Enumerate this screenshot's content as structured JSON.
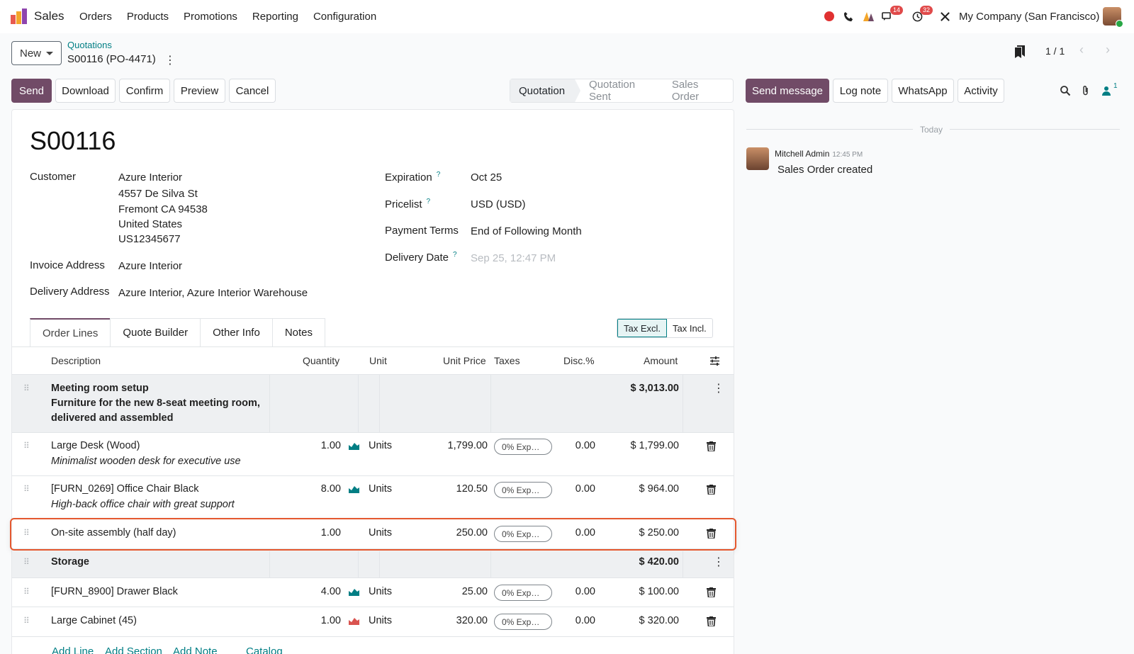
{
  "topbar": {
    "app_name": "Sales",
    "menu": [
      "Orders",
      "Products",
      "Promotions",
      "Reporting",
      "Configuration"
    ],
    "badges": {
      "messages": "14",
      "activities": "32"
    },
    "company": "My Company (San Francisco)"
  },
  "control": {
    "new_label": "New",
    "breadcrumb_parent": "Quotations",
    "breadcrumb_current": "S00116 (PO-4471)",
    "pager": "1 / 1"
  },
  "actions": [
    "Send",
    "Download",
    "Confirm",
    "Preview",
    "Cancel"
  ],
  "stages": {
    "items": [
      "Quotation",
      "Quotation Sent",
      "Sales Order"
    ],
    "active": "Quotation"
  },
  "form": {
    "name": "S00116",
    "customer_label": "Customer",
    "customer_lines": [
      "Azure Interior",
      "4557 De Silva St",
      "Fremont CA 94538",
      "United States",
      "US12345677"
    ],
    "invoice_label": "Invoice Address",
    "invoice_value": "Azure Interior",
    "delivery_label": "Delivery Address",
    "delivery_value": "Azure Interior, Azure Interior Warehouse",
    "expiration_label": "Expiration",
    "expiration_value": "Oct 25",
    "pricelist_label": "Pricelist",
    "pricelist_value": "USD (USD)",
    "terms_label": "Payment Terms",
    "terms_value": "End of Following Month",
    "delivery_date_label": "Delivery Date",
    "delivery_date_placeholder": "Sep 25, 12:47 PM",
    "help_mark": "?"
  },
  "tabs": [
    "Order Lines",
    "Quote Builder",
    "Other Info",
    "Notes"
  ],
  "tax_toggle": [
    "Tax Excl.",
    "Tax Incl."
  ],
  "table": {
    "headers": [
      "Description",
      "Quantity",
      "Unit",
      "Unit Price",
      "Taxes",
      "Disc.%",
      "Amount"
    ],
    "section1": {
      "title": "Meeting room setup",
      "desc1": "Furniture for the new 8-seat meeting room,",
      "desc2": "delivered and assembled",
      "amount": "$ 3,013.00"
    },
    "lines": [
      {
        "name": "Large Desk (Wood)",
        "desc": "Minimalist wooden desk for executive use",
        "qty": "1.00",
        "unit": "Units",
        "price": "1,799.00",
        "tax": "0% Exp…",
        "disc": "0.00",
        "amount": "$ 1,799.00"
      },
      {
        "name": "[FURN_0269] Office Chair Black",
        "desc": "High-back office chair with great support",
        "qty": "8.00",
        "unit": "Units",
        "price": "120.50",
        "tax": "0% Exp…",
        "disc": "0.00",
        "amount": "$ 964.00"
      },
      {
        "name": "On-site assembly (half day)",
        "desc": "",
        "qty": "1.00",
        "unit": "Units",
        "price": "250.00",
        "tax": "0% Exp…",
        "disc": "0.00",
        "amount": "$ 250.00"
      }
    ],
    "section2": {
      "title": "Storage",
      "amount": "$ 420.00"
    },
    "lines2": [
      {
        "name": "[FURN_8900] Drawer Black",
        "qty": "4.00",
        "unit": "Units",
        "price": "25.00",
        "tax": "0% Exp…",
        "disc": "0.00",
        "amount": "$ 100.00"
      },
      {
        "name": "Large Cabinet (45)",
        "qty": "1.00",
        "unit": "Units",
        "price": "320.00",
        "tax": "0% Exp…",
        "disc": "0.00",
        "amount": "$ 320.00"
      }
    ],
    "add_links": [
      "Add Line",
      "Add Section",
      "Add Note",
      "Catalog"
    ]
  },
  "chatter": {
    "buttons": [
      "Send message",
      "Log note",
      "WhatsApp",
      "Activity"
    ],
    "followers": "1",
    "day": "Today",
    "author": "Mitchell Admin",
    "time": "12:45 PM",
    "body": "Sales Order created"
  },
  "colors": {
    "brand": "#714b67",
    "link": "#017e84",
    "highlight": "#e4582f"
  }
}
